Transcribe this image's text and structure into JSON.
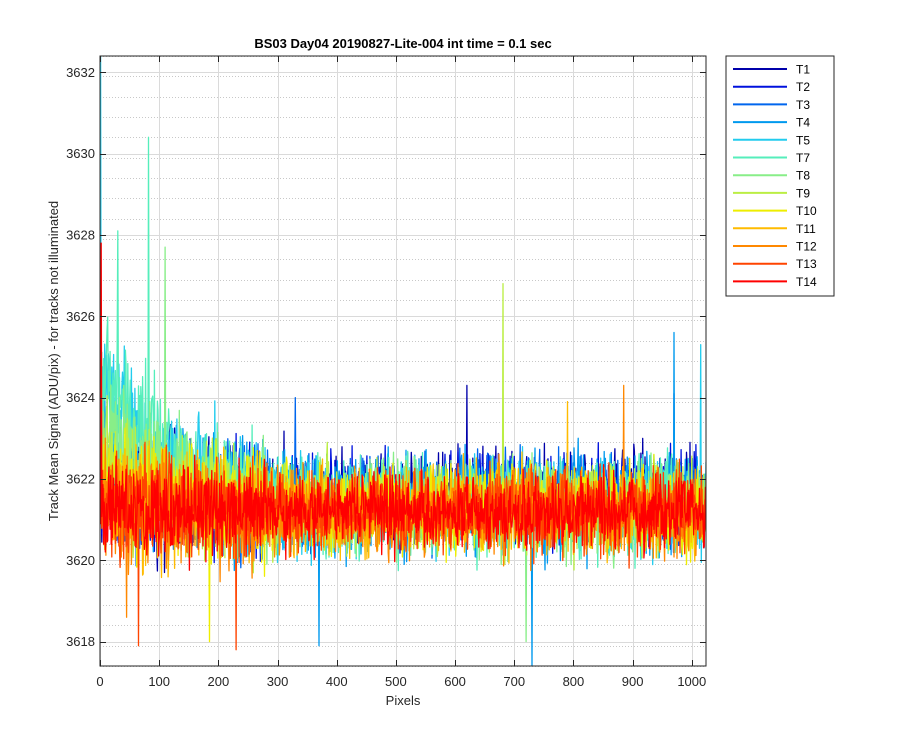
{
  "chart_data": {
    "type": "line",
    "title": "BS03 Day04 20190827-Lite-004 int time = 0.1 sec",
    "xlabel": "Pixels",
    "ylabel": "Track Mean Signal (ADU/pix) - for tracks not illuminated",
    "xlim": [
      0,
      1024
    ],
    "ylim": [
      3617.4,
      3632.4
    ],
    "x_ticks": [
      0,
      100,
      200,
      300,
      400,
      500,
      600,
      700,
      800,
      900,
      1000
    ],
    "y_ticks": [
      3618,
      3620,
      3622,
      3624,
      3626,
      3628,
      3630,
      3632
    ],
    "grid": "major and minor",
    "legend_position": "outside-right",
    "series": [
      {
        "name": "T1",
        "color": "#0000aa",
        "mean": 3621.6,
        "noise": 0.9,
        "early_mean": 3621.6,
        "spikes": [
          [
            620,
            3624.3
          ]
        ]
      },
      {
        "name": "T2",
        "color": "#0011dd",
        "mean": 3621.5,
        "noise": 0.9,
        "early_mean": 3621.5,
        "spikes": [
          [
            970,
            3624.1
          ]
        ]
      },
      {
        "name": "T3",
        "color": "#0066ee",
        "mean": 3621.5,
        "noise": 0.9,
        "early_mean": 3621.8,
        "spikes": [
          [
            330,
            3624.0
          ]
        ]
      },
      {
        "name": "T4",
        "color": "#0099ee",
        "mean": 3621.4,
        "noise": 0.95,
        "early_mean": 3622.8,
        "spikes": [
          [
            730,
            3617.4
          ],
          [
            970,
            3625.6
          ],
          [
            370,
            3617.9
          ]
        ]
      },
      {
        "name": "T5",
        "color": "#22ccee",
        "mean": 3621.4,
        "noise": 0.95,
        "early_mean": 3624.3,
        "spikes": [
          [
            1,
            3632.4
          ],
          [
            1015,
            3625.3
          ]
        ]
      },
      {
        "name": "T7",
        "color": "#55eebb",
        "mean": 3621.3,
        "noise": 0.95,
        "early_mean": 3624.8,
        "spikes": [
          [
            82,
            3630.4
          ],
          [
            30,
            3628.1
          ]
        ]
      },
      {
        "name": "T8",
        "color": "#88ee88",
        "mean": 3621.3,
        "noise": 0.9,
        "early_mean": 3623.6,
        "spikes": [
          [
            720,
            3618.0
          ],
          [
            110,
            3627.7
          ]
        ]
      },
      {
        "name": "T9",
        "color": "#bbee44",
        "mean": 3621.3,
        "noise": 0.9,
        "early_mean": 3622.4,
        "spikes": [
          [
            681,
            3626.8
          ]
        ]
      },
      {
        "name": "T10",
        "color": "#eeee00",
        "mean": 3621.3,
        "noise": 0.85,
        "early_mean": 3621.8,
        "spikes": [
          [
            185,
            3618.0
          ]
        ]
      },
      {
        "name": "T11",
        "color": "#ffbb00",
        "mean": 3621.2,
        "noise": 0.85,
        "early_mean": 3621.4,
        "spikes": [
          [
            790,
            3623.9
          ]
        ]
      },
      {
        "name": "T12",
        "color": "#ff8800",
        "mean": 3621.2,
        "noise": 0.85,
        "early_mean": 3621.3,
        "spikes": [
          [
            885,
            3624.3
          ],
          [
            45,
            3618.6
          ]
        ]
      },
      {
        "name": "T13",
        "color": "#ff4400",
        "mean": 3621.2,
        "noise": 0.8,
        "early_mean": 3621.3,
        "spikes": [
          [
            65,
            3617.9
          ],
          [
            230,
            3617.8
          ]
        ]
      },
      {
        "name": "T14",
        "color": "#ff0000",
        "mean": 3621.2,
        "noise": 0.75,
        "early_mean": 3621.3,
        "spikes": [
          [
            2,
            3627.8
          ]
        ]
      }
    ]
  }
}
